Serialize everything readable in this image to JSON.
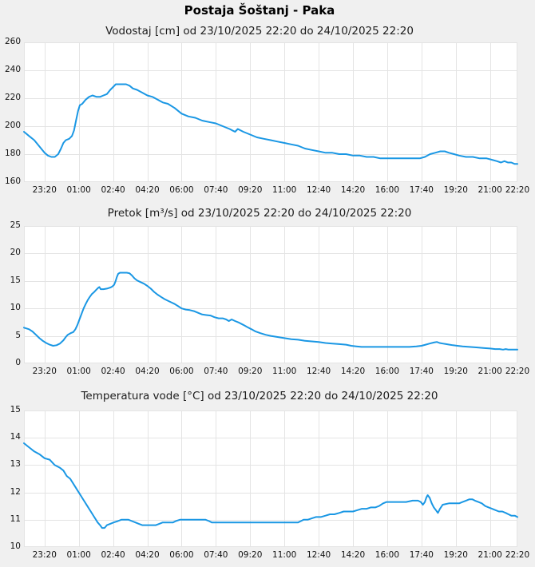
{
  "page": {
    "title": "Postaja Šoštanj - Paka",
    "background_color": "#f0f0f0",
    "plot_background_color": "#ffffff",
    "grid_color": "#e4e4e4",
    "line_color": "#1a97e4"
  },
  "x_axis": {
    "span_minutes": 1440,
    "start_label": "22:20",
    "tick_minutes": [
      60,
      160,
      260,
      360,
      460,
      560,
      660,
      760,
      860,
      960,
      1060,
      1160,
      1260,
      1360,
      1440
    ],
    "tick_labels": [
      "23:20",
      "01:00",
      "02:40",
      "04:20",
      "06:00",
      "07:40",
      "09:20",
      "11:00",
      "12:40",
      "14:20",
      "16:00",
      "17:40",
      "19:20",
      "21:00",
      "22:20"
    ]
  },
  "chart_data": [
    {
      "type": "line",
      "title": "Vodostaj [cm] od 23/10/2025 22:20 do 24/10/2025 22:20",
      "quantity": "Vodostaj",
      "unit": "cm",
      "ylim": [
        160,
        260
      ],
      "yticks": [
        160,
        180,
        200,
        220,
        240,
        260
      ],
      "grid": true,
      "legend": "none",
      "x_minutes": [
        0,
        15,
        30,
        40,
        50,
        60,
        70,
        80,
        90,
        100,
        108,
        115,
        122,
        132,
        140,
        146,
        152,
        158,
        163,
        170,
        180,
        190,
        200,
        212,
        222,
        232,
        242,
        252,
        260,
        268,
        283,
        298,
        308,
        318,
        330,
        345,
        360,
        375,
        390,
        405,
        420,
        440,
        460,
        480,
        500,
        520,
        540,
        560,
        580,
        600,
        608,
        616,
        624,
        640,
        660,
        680,
        700,
        720,
        740,
        760,
        780,
        800,
        820,
        840,
        860,
        880,
        900,
        920,
        940,
        960,
        980,
        1000,
        1020,
        1040,
        1070,
        1100,
        1130,
        1155,
        1170,
        1185,
        1200,
        1215,
        1228,
        1240,
        1255,
        1270,
        1290,
        1310,
        1330,
        1350,
        1365,
        1380,
        1392,
        1402,
        1412,
        1422,
        1432,
        1440
      ],
      "values": [
        196,
        193,
        190,
        187,
        184,
        181,
        179,
        178,
        178,
        180,
        184,
        188,
        190,
        191,
        193,
        197,
        204,
        211,
        215,
        216,
        219,
        221,
        222,
        221,
        221,
        222,
        223,
        226,
        228,
        230,
        230,
        230,
        229,
        227,
        226,
        224,
        222,
        221,
        219,
        217,
        216,
        213,
        209,
        207,
        206,
        204,
        203,
        202,
        200,
        198,
        197,
        196,
        198,
        196,
        194,
        192,
        191,
        190,
        189,
        188,
        187,
        186,
        184,
        183,
        182,
        181,
        181,
        180,
        180,
        179,
        179,
        178,
        178,
        177,
        177,
        177,
        177,
        177,
        178,
        180,
        181,
        182,
        182,
        181,
        180,
        179,
        178,
        178,
        177,
        177,
        176,
        175,
        174,
        175,
        174,
        174,
        173,
        173
      ]
    },
    {
      "type": "line",
      "title": "Pretok [m³/s] od 23/10/2025 22:20 do 24/10/2025 22:20",
      "quantity": "Pretok",
      "unit": "m³/s",
      "ylim": [
        0,
        25
      ],
      "yticks": [
        0,
        5,
        10,
        15,
        20,
        25
      ],
      "grid": true,
      "legend": "none",
      "x_minutes": [
        0,
        15,
        25,
        35,
        45,
        55,
        65,
        75,
        85,
        95,
        105,
        115,
        122,
        128,
        136,
        144,
        150,
        156,
        162,
        168,
        174,
        180,
        186,
        192,
        198,
        205,
        211,
        216,
        220,
        224,
        232,
        242,
        252,
        258,
        263,
        267,
        271,
        275,
        280,
        290,
        300,
        308,
        315,
        322,
        330,
        340,
        350,
        360,
        370,
        380,
        390,
        400,
        410,
        420,
        430,
        440,
        450,
        460,
        472,
        484,
        496,
        508,
        520,
        532,
        544,
        556,
        568,
        580,
        590,
        598,
        606,
        616,
        628,
        640,
        652,
        664,
        676,
        690,
        705,
        720,
        740,
        760,
        780,
        800,
        820,
        840,
        860,
        880,
        900,
        920,
        940,
        955,
        970,
        985,
        1005,
        1025,
        1045,
        1065,
        1085,
        1105,
        1125,
        1145,
        1160,
        1172,
        1184,
        1196,
        1205,
        1213,
        1222,
        1232,
        1242,
        1252,
        1265,
        1280,
        1300,
        1320,
        1340,
        1360,
        1375,
        1388,
        1398,
        1406,
        1414,
        1427,
        1440
      ],
      "values": [
        6.5,
        6.2,
        5.8,
        5.2,
        4.6,
        4.1,
        3.7,
        3.4,
        3.2,
        3.3,
        3.6,
        4.2,
        4.8,
        5.2,
        5.5,
        5.7,
        6.2,
        7.0,
        8.0,
        9.0,
        10.0,
        10.8,
        11.5,
        12.1,
        12.6,
        13.0,
        13.4,
        13.7,
        13.9,
        13.5,
        13.5,
        13.6,
        13.8,
        14.0,
        14.3,
        14.9,
        15.7,
        16.3,
        16.5,
        16.5,
        16.5,
        16.4,
        16.0,
        15.5,
        15.1,
        14.8,
        14.5,
        14.1,
        13.6,
        13.0,
        12.5,
        12.1,
        11.7,
        11.4,
        11.1,
        10.8,
        10.4,
        10.0,
        9.8,
        9.7,
        9.5,
        9.2,
        8.9,
        8.8,
        8.7,
        8.4,
        8.2,
        8.2,
        8.0,
        7.7,
        8.0,
        7.7,
        7.4,
        7.0,
        6.6,
        6.2,
        5.8,
        5.5,
        5.2,
        5.0,
        4.8,
        4.6,
        4.4,
        4.3,
        4.1,
        4.0,
        3.9,
        3.7,
        3.6,
        3.5,
        3.4,
        3.2,
        3.1,
        3.0,
        3.0,
        3.0,
        3.0,
        3.0,
        3.0,
        3.0,
        3.0,
        3.1,
        3.2,
        3.4,
        3.6,
        3.8,
        3.9,
        3.7,
        3.6,
        3.5,
        3.4,
        3.3,
        3.2,
        3.1,
        3.0,
        2.9,
        2.8,
        2.7,
        2.6,
        2.6,
        2.5,
        2.6,
        2.5,
        2.5,
        2.5
      ]
    },
    {
      "type": "line",
      "title": "Temperatura vode [°C] od 23/10/2025 22:20 do 24/10/2025 22:20",
      "quantity": "Temperatura vode",
      "unit": "°C",
      "ylim": [
        10,
        15
      ],
      "yticks": [
        10,
        11,
        12,
        13,
        14,
        15
      ],
      "grid": true,
      "legend": "none",
      "x_minutes": [
        0,
        10,
        20,
        30,
        45,
        60,
        75,
        90,
        105,
        115,
        125,
        135,
        145,
        155,
        165,
        175,
        185,
        195,
        205,
        215,
        222,
        228,
        235,
        242,
        252,
        262,
        274,
        284,
        295,
        305,
        315,
        325,
        335,
        345,
        365,
        385,
        395,
        405,
        420,
        435,
        443,
        455,
        470,
        490,
        510,
        530,
        540,
        548,
        570,
        600,
        630,
        660,
        690,
        720,
        750,
        780,
        800,
        808,
        816,
        828,
        840,
        852,
        866,
        880,
        893,
        906,
        920,
        933,
        946,
        960,
        973,
        986,
        1000,
        1012,
        1025,
        1036,
        1048,
        1058,
        1075,
        1095,
        1115,
        1134,
        1150,
        1158,
        1164,
        1170,
        1174,
        1178,
        1184,
        1190,
        1196,
        1202,
        1208,
        1214,
        1222,
        1240,
        1258,
        1270,
        1280,
        1290,
        1300,
        1308,
        1316,
        1326,
        1336,
        1346,
        1356,
        1366,
        1376,
        1386,
        1396,
        1406,
        1414,
        1422,
        1432,
        1440
      ],
      "values": [
        13.8,
        13.7,
        13.6,
        13.5,
        13.4,
        13.25,
        13.2,
        13.0,
        12.9,
        12.8,
        12.6,
        12.5,
        12.3,
        12.1,
        11.9,
        11.7,
        11.5,
        11.3,
        11.1,
        10.9,
        10.8,
        10.7,
        10.7,
        10.8,
        10.85,
        10.9,
        10.95,
        11.0,
        11.0,
        11.0,
        10.95,
        10.9,
        10.85,
        10.8,
        10.8,
        10.8,
        10.85,
        10.9,
        10.9,
        10.9,
        10.95,
        11.0,
        11.0,
        11.0,
        11.0,
        11.0,
        10.95,
        10.9,
        10.9,
        10.9,
        10.9,
        10.9,
        10.9,
        10.9,
        10.9,
        10.9,
        10.9,
        10.95,
        11.0,
        11.0,
        11.05,
        11.1,
        11.1,
        11.15,
        11.2,
        11.2,
        11.25,
        11.3,
        11.3,
        11.3,
        11.35,
        11.4,
        11.4,
        11.45,
        11.45,
        11.5,
        11.6,
        11.65,
        11.65,
        11.65,
        11.65,
        11.7,
        11.7,
        11.65,
        11.55,
        11.65,
        11.8,
        11.9,
        11.8,
        11.6,
        11.45,
        11.35,
        11.25,
        11.4,
        11.55,
        11.6,
        11.6,
        11.6,
        11.65,
        11.7,
        11.75,
        11.75,
        11.7,
        11.65,
        11.6,
        11.5,
        11.45,
        11.4,
        11.35,
        11.3,
        11.3,
        11.25,
        11.2,
        11.15,
        11.15,
        11.1,
        11.1
      ]
    }
  ]
}
